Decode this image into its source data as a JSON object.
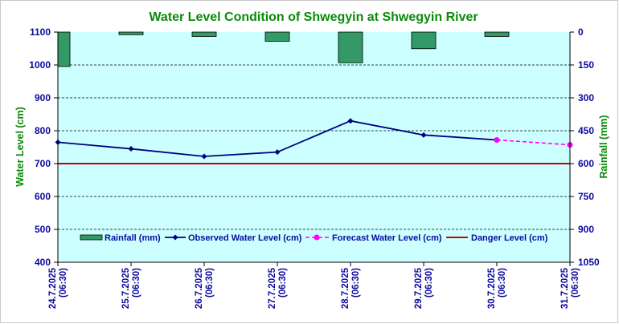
{
  "chart_data": {
    "type": "bar+line",
    "title": "Water Level Condition of Shwegyin at Shwegyin River",
    "ylabel_left": "Water Level (cm)",
    "ylabel_right": "Rainfall (mm)",
    "ylim_left": [
      400,
      1100
    ],
    "ylim_right": [
      1050,
      0
    ],
    "yticks_left": [
      "1100",
      "1000",
      "900",
      "800",
      "700",
      "600",
      "500",
      "400"
    ],
    "yticks_right": [
      "0",
      "150",
      "300",
      "450",
      "600",
      "750",
      "900",
      "1050"
    ],
    "categories": [
      {
        "date": "24.7.2025",
        "time": "(06:30)"
      },
      {
        "date": "25.7.2025",
        "time": "(06:30)"
      },
      {
        "date": "26.7.2025",
        "time": "(06:30)"
      },
      {
        "date": "27.7.2025",
        "time": "(06:30)"
      },
      {
        "date": "28.7.2025",
        "time": "(06:30)"
      },
      {
        "date": "29.7.2025",
        "time": "(06:30)"
      },
      {
        "date": "30.7.2025",
        "time": "(06:30)"
      },
      {
        "date": "31.7.2025",
        "time": "(06:30)"
      }
    ],
    "series": [
      {
        "name": "Rainfall (mm)",
        "kind": "bar",
        "axis": "right",
        "color": "#339966",
        "values": [
          157,
          12,
          20,
          42,
          140,
          76,
          20,
          null
        ]
      },
      {
        "name": "Observed Water Level (cm)",
        "kind": "line",
        "axis": "left",
        "color": "#000080",
        "values": [
          765,
          745,
          722,
          735,
          830,
          787,
          772,
          null
        ]
      },
      {
        "name": "Forecast Water Level (cm)",
        "kind": "dashed-line",
        "axis": "left",
        "color": "#ff00ff",
        "values": [
          null,
          null,
          null,
          null,
          null,
          null,
          772,
          757
        ]
      },
      {
        "name": "Danger Level (cm)",
        "kind": "hline",
        "axis": "left",
        "color": "#cc0000",
        "value": 700
      }
    ],
    "legend_position": "bottom-inside"
  }
}
